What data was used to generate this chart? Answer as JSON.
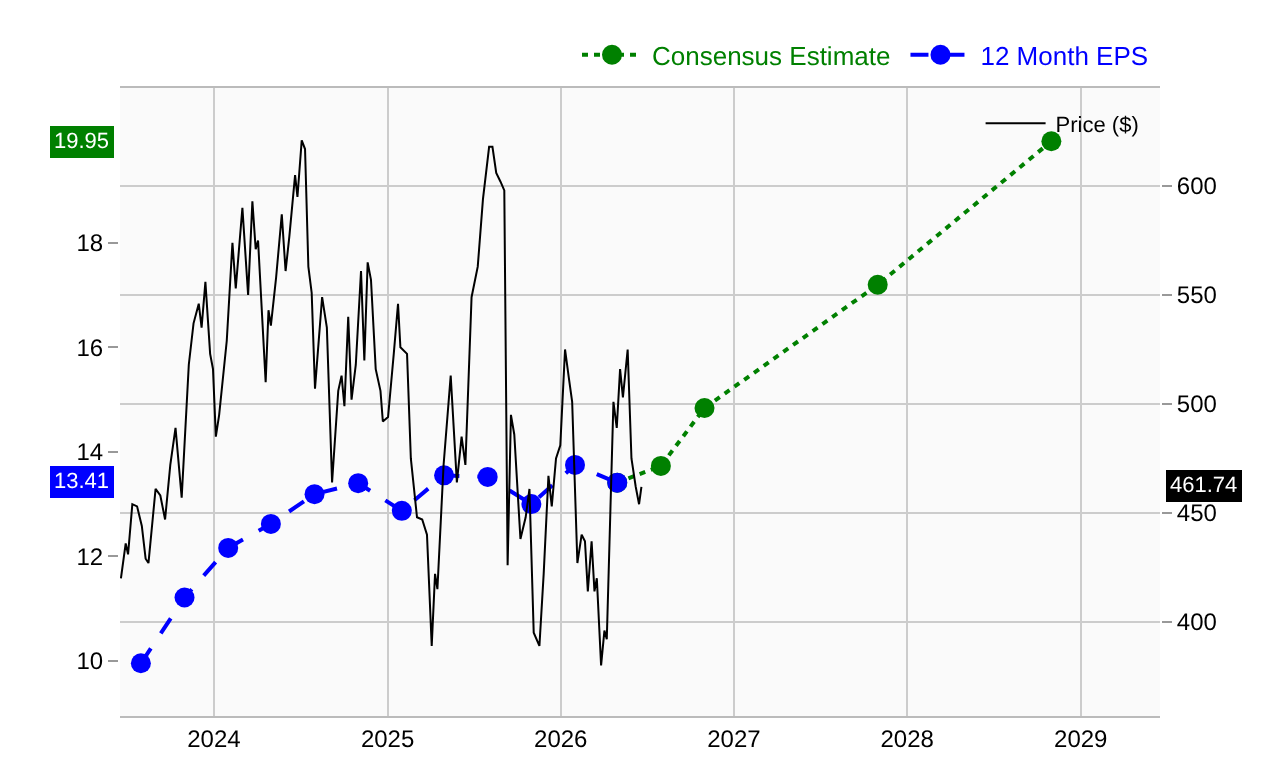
{
  "chart_data": {
    "type": "line",
    "xlim": [
      "2023-06-17",
      "2029-06-17"
    ],
    "xticks": [
      {
        "value": "2024-01-01",
        "label": "2024"
      },
      {
        "value": "2025-01-01",
        "label": "2025"
      },
      {
        "value": "2026-01-01",
        "label": "2026"
      },
      {
        "value": "2027-01-01",
        "label": "2027"
      },
      {
        "value": "2028-01-01",
        "label": "2028"
      },
      {
        "value": "2029-01-01",
        "label": "2029"
      }
    ],
    "ylim": [
      8.94,
      20.97
    ],
    "yticks": [
      10,
      12,
      14,
      16,
      18
    ],
    "y2lim": [
      356.8,
      645
    ],
    "y2ticks": [
      400,
      450,
      500,
      550,
      600
    ],
    "grid": true,
    "legend": "top right",
    "series": [
      {
        "name": "Consensus Estimate",
        "color": "#008000",
        "line_style": "dotted",
        "marker": "circle",
        "x": [
          "2026-04-30",
          "2026-07-31",
          "2026-10-31",
          "2027-10-31",
          "2028-10-31"
        ],
        "values": [
          13.41,
          13.73,
          14.84,
          17.2,
          19.95
        ]
      },
      {
        "name": "12 Month EPS",
        "color": "#0000ff",
        "line_style": "dashed",
        "marker": "circle",
        "x": [
          "2023-07-31",
          "2023-10-31",
          "2024-01-31",
          "2024-04-30",
          "2024-07-31",
          "2024-10-31",
          "2025-01-31",
          "2025-04-30",
          "2025-07-31",
          "2025-10-31",
          "2026-01-31",
          "2026-04-30"
        ],
        "values": [
          9.95,
          11.21,
          12.16,
          12.62,
          13.19,
          13.4,
          12.87,
          13.55,
          13.52,
          13.0,
          13.75,
          13.41
        ]
      },
      {
        "name": "Price ($)",
        "color": "#000000",
        "axis": "y2",
        "line_style": "solid",
        "marker": "none",
        "x": [
          "2023-06-19",
          "2023-06-29",
          "2023-07-04",
          "2023-07-13",
          "2023-07-23",
          "2023-08-02",
          "2023-08-10",
          "2023-08-16",
          "2023-08-31",
          "2023-09-10",
          "2023-09-20",
          "2023-10-01",
          "2023-10-12",
          "2023-10-25",
          "2023-11-09",
          "2023-11-19",
          "2023-11-30",
          "2023-12-06",
          "2023-12-14",
          "2023-12-24",
          "2023-12-30",
          "2024-01-05",
          "2024-01-12",
          "2024-01-28",
          "2024-02-09",
          "2024-02-16",
          "2024-03-01",
          "2024-03-13",
          "2024-03-22",
          "2024-03-29",
          "2024-04-03",
          "2024-04-19",
          "2024-04-25",
          "2024-04-30",
          "2024-05-11",
          "2024-05-23",
          "2024-05-31",
          "2024-06-08",
          "2024-06-20",
          "2024-06-25",
          "2024-07-04",
          "2024-07-11",
          "2024-07-18",
          "2024-07-25",
          "2024-08-01",
          "2024-08-16",
          "2024-08-26",
          "2024-09-06",
          "2024-09-19",
          "2024-09-26",
          "2024-10-02",
          "2024-10-10",
          "2024-10-17",
          "2024-10-26",
          "2024-11-06",
          "2024-11-13",
          "2024-11-20",
          "2024-11-27",
          "2024-12-07",
          "2024-12-17",
          "2024-12-22",
          "2025-01-02",
          "2025-01-14",
          "2025-01-23",
          "2025-01-28",
          "2025-02-11",
          "2025-02-19",
          "2025-03-04",
          "2025-03-15",
          "2025-03-25",
          "2025-04-04",
          "2025-04-11",
          "2025-04-16",
          "2025-04-29",
          "2025-05-14",
          "2025-05-27",
          "2025-06-06",
          "2025-06-14",
          "2025-06-27",
          "2025-07-10",
          "2025-07-21",
          "2025-08-03",
          "2025-08-10",
          "2025-08-18",
          "2025-08-27",
          "2025-09-04",
          "2025-09-11",
          "2025-09-18",
          "2025-09-25",
          "2025-10-08",
          "2025-10-19",
          "2025-10-27",
          "2025-11-05",
          "2025-11-17",
          "2025-11-26",
          "2025-12-06",
          "2025-12-13",
          "2025-12-22",
          "2025-12-31",
          "2026-01-10",
          "2026-01-18",
          "2026-01-25",
          "2026-02-05",
          "2026-02-14",
          "2026-02-21",
          "2026-02-27",
          "2026-03-07",
          "2026-03-13",
          "2026-03-18",
          "2026-03-27",
          "2026-04-03",
          "2026-04-08",
          "2026-04-22",
          "2026-04-29",
          "2026-05-06",
          "2026-05-12",
          "2026-05-22",
          "2026-05-30",
          "2026-06-08",
          "2026-06-15",
          "2026-06-20"
        ],
        "values": [
          420,
          436,
          431,
          454,
          453,
          444,
          429,
          427,
          461,
          458,
          447,
          472,
          489,
          457,
          518,
          537,
          546,
          535,
          556,
          523,
          516,
          485,
          495,
          529,
          574,
          553,
          590,
          550,
          593,
          571,
          575,
          510,
          543,
          536,
          558,
          587,
          561,
          577,
          605,
          595,
          621,
          617,
          563,
          551,
          507,
          549,
          535,
          464,
          506,
          513,
          499,
          540,
          502,
          518,
          561,
          520,
          565,
          557,
          516,
          506,
          492,
          494,
          523,
          546,
          526,
          523,
          475,
          448,
          447,
          440,
          389,
          422,
          415,
          472,
          513,
          464,
          485,
          472,
          549,
          563,
          594,
          618,
          618,
          606,
          602,
          598,
          426,
          495,
          486,
          438,
          448,
          461,
          395,
          389,
          422,
          467,
          453,
          475,
          481,
          525,
          512,
          501,
          427,
          440,
          437,
          414,
          437,
          414,
          420,
          380,
          396,
          392,
          501,
          489,
          516,
          503,
          525,
          475,
          462,
          454,
          462
        ]
      }
    ],
    "annotations": [
      "19.95",
      "13.41",
      "461.74"
    ]
  }
}
